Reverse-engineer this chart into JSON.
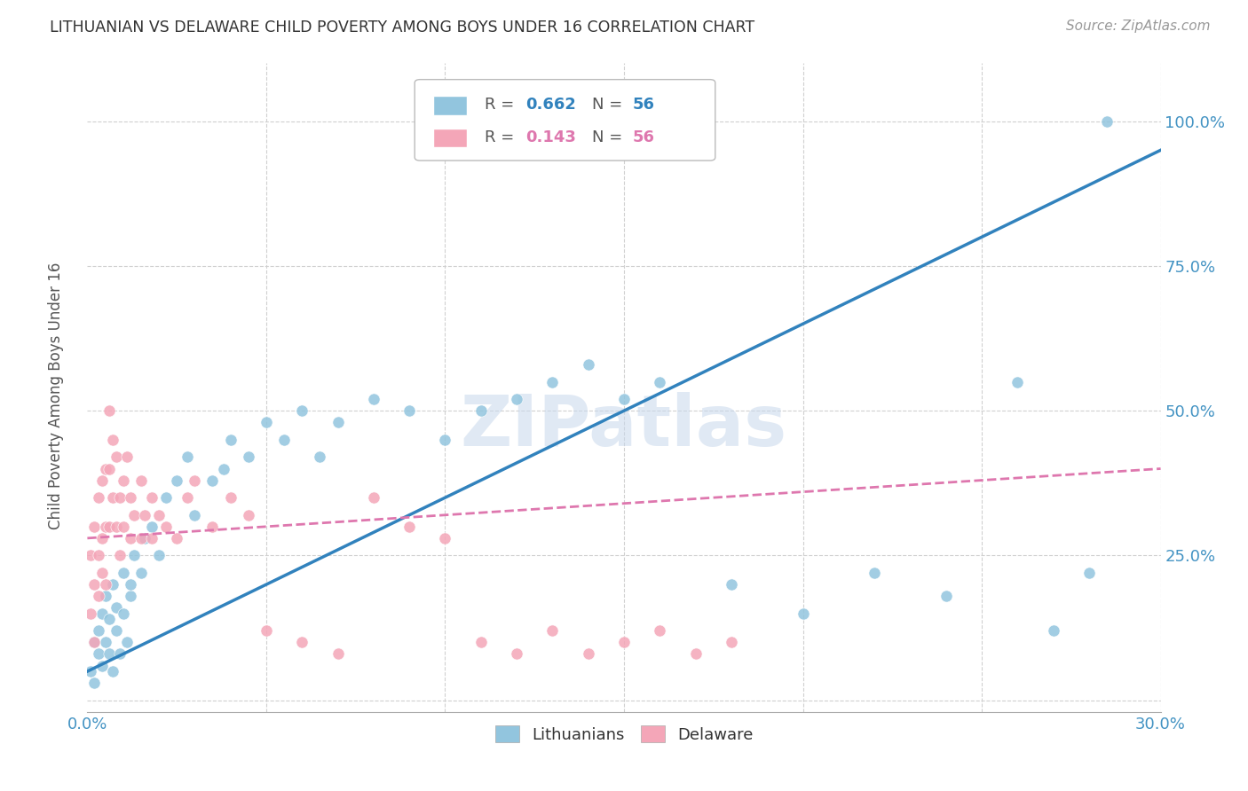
{
  "title": "LITHUANIAN VS DELAWARE CHILD POVERTY AMONG BOYS UNDER 16 CORRELATION CHART",
  "source": "Source: ZipAtlas.com",
  "ylabel": "Child Poverty Among Boys Under 16",
  "xlim": [
    0.0,
    0.3
  ],
  "ylim": [
    -0.02,
    1.1
  ],
  "xtick_positions": [
    0.0,
    0.05,
    0.1,
    0.15,
    0.2,
    0.25,
    0.3
  ],
  "xtick_labels": [
    "0.0%",
    "",
    "",
    "",
    "",
    "",
    "30.0%"
  ],
  "ytick_positions": [
    0.0,
    0.25,
    0.5,
    0.75,
    1.0
  ],
  "ytick_labels": [
    "",
    "25.0%",
    "50.0%",
    "75.0%",
    "100.0%"
  ],
  "watermark": "ZIPatlas",
  "blue_color": "#92c5de",
  "pink_color": "#f4a6b8",
  "blue_line_color": "#3182bd",
  "pink_line_color": "#de77ae",
  "grid_color": "#d0d0d0",
  "title_color": "#333333",
  "tick_label_color": "#4393c3",
  "blue_x": [
    0.001,
    0.002,
    0.002,
    0.003,
    0.003,
    0.004,
    0.004,
    0.005,
    0.005,
    0.006,
    0.006,
    0.007,
    0.007,
    0.008,
    0.008,
    0.009,
    0.01,
    0.01,
    0.011,
    0.012,
    0.012,
    0.013,
    0.015,
    0.016,
    0.018,
    0.02,
    0.022,
    0.025,
    0.028,
    0.03,
    0.035,
    0.038,
    0.04,
    0.045,
    0.05,
    0.055,
    0.06,
    0.065,
    0.07,
    0.08,
    0.09,
    0.1,
    0.11,
    0.12,
    0.13,
    0.14,
    0.15,
    0.16,
    0.18,
    0.2,
    0.22,
    0.24,
    0.26,
    0.27,
    0.28,
    0.285
  ],
  "blue_y": [
    0.05,
    0.1,
    0.03,
    0.08,
    0.12,
    0.15,
    0.06,
    0.1,
    0.18,
    0.08,
    0.14,
    0.2,
    0.05,
    0.12,
    0.16,
    0.08,
    0.15,
    0.22,
    0.1,
    0.18,
    0.2,
    0.25,
    0.22,
    0.28,
    0.3,
    0.25,
    0.35,
    0.38,
    0.42,
    0.32,
    0.38,
    0.4,
    0.45,
    0.42,
    0.48,
    0.45,
    0.5,
    0.42,
    0.48,
    0.52,
    0.5,
    0.45,
    0.5,
    0.52,
    0.55,
    0.58,
    0.52,
    0.55,
    0.2,
    0.15,
    0.22,
    0.18,
    0.55,
    0.12,
    0.22,
    1.0
  ],
  "pink_x": [
    0.001,
    0.001,
    0.002,
    0.002,
    0.002,
    0.003,
    0.003,
    0.003,
    0.004,
    0.004,
    0.004,
    0.005,
    0.005,
    0.005,
    0.006,
    0.006,
    0.006,
    0.007,
    0.007,
    0.008,
    0.008,
    0.009,
    0.009,
    0.01,
    0.01,
    0.011,
    0.012,
    0.012,
    0.013,
    0.015,
    0.015,
    0.016,
    0.018,
    0.018,
    0.02,
    0.022,
    0.025,
    0.028,
    0.03,
    0.035,
    0.04,
    0.045,
    0.05,
    0.06,
    0.07,
    0.08,
    0.09,
    0.1,
    0.11,
    0.12,
    0.13,
    0.14,
    0.15,
    0.16,
    0.17,
    0.18
  ],
  "pink_y": [
    0.15,
    0.25,
    0.2,
    0.3,
    0.1,
    0.25,
    0.35,
    0.18,
    0.28,
    0.38,
    0.22,
    0.3,
    0.4,
    0.2,
    0.3,
    0.4,
    0.5,
    0.35,
    0.45,
    0.3,
    0.42,
    0.35,
    0.25,
    0.3,
    0.38,
    0.42,
    0.28,
    0.35,
    0.32,
    0.38,
    0.28,
    0.32,
    0.35,
    0.28,
    0.32,
    0.3,
    0.28,
    0.35,
    0.38,
    0.3,
    0.35,
    0.32,
    0.12,
    0.1,
    0.08,
    0.35,
    0.3,
    0.28,
    0.1,
    0.08,
    0.12,
    0.08,
    0.1,
    0.12,
    0.08,
    0.1
  ],
  "blue_regr": [
    0.0,
    0.3,
    0.05,
    0.95
  ],
  "pink_regr": [
    0.0,
    0.3,
    0.28,
    0.4
  ]
}
